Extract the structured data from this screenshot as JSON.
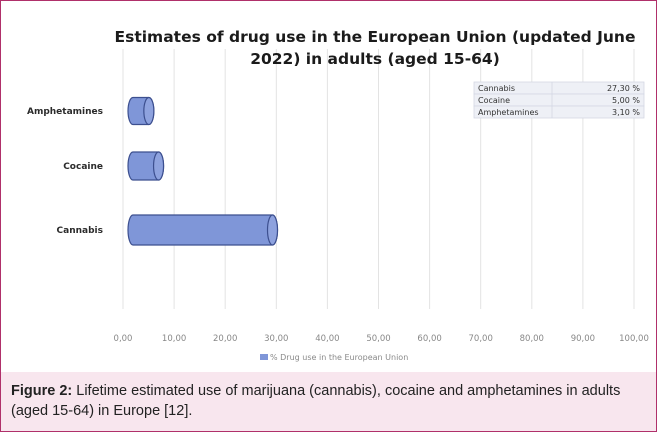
{
  "chart_data": {
    "type": "bar",
    "orientation": "horizontal",
    "style": "3d-cylinder",
    "title_line1": "Estimates of drug use in the European Union (updated June",
    "title_line2": "2022) in adults (aged 15-64)",
    "categories": [
      "Amphetamines",
      "Cocaine",
      "Cannabis"
    ],
    "series": [
      {
        "name": "% Drug use in the European Union",
        "values": [
          3.1,
          5.0,
          27.3
        ],
        "color": "#7f96d8"
      }
    ],
    "xlim": [
      0,
      100
    ],
    "xticks": [
      "0,00",
      "10,00",
      "20,00",
      "30,00",
      "40,00",
      "50,00",
      "60,00",
      "70,00",
      "80,00",
      "90,00",
      "100,00"
    ],
    "grid": true,
    "legend_position": "bottom",
    "data_table": [
      {
        "label": "Cannabis",
        "value": "27,30 %"
      },
      {
        "label": "Cocaine",
        "value": "5,00 %"
      },
      {
        "label": "Amphetamines",
        "value": "3,10 %"
      }
    ]
  },
  "caption": {
    "label": "Figure 2:",
    "text": "Lifetime estimated use of marijuana (cannabis), cocaine and amphetamines in adults (aged 15-64) in Europe [12]."
  }
}
